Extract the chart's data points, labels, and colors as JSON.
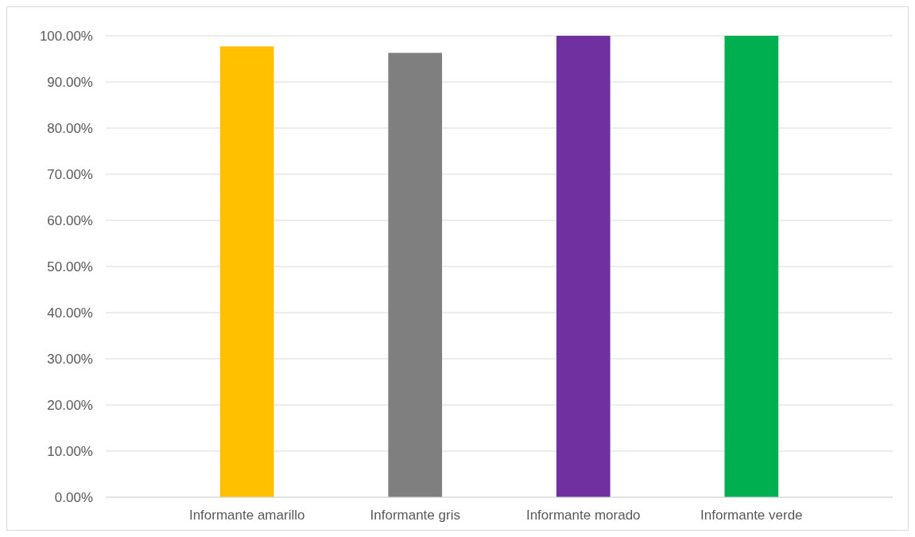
{
  "chart_data": {
    "type": "bar",
    "categories": [
      "Informante amarillo",
      "Informante gris",
      "Informante morado",
      "Informante verde"
    ],
    "values": [
      97.7,
      96.3,
      100,
      100
    ],
    "colors": [
      "#ffc000",
      "#7f7f7f",
      "#7030a0",
      "#00b050"
    ],
    "ylim": [
      0,
      100
    ],
    "yticks": [
      {
        "value": 0,
        "label": "0.00%"
      },
      {
        "value": 10,
        "label": "10.00%"
      },
      {
        "value": 20,
        "label": "20.00%"
      },
      {
        "value": 30,
        "label": "30.00%"
      },
      {
        "value": 40,
        "label": "40.00%"
      },
      {
        "value": 50,
        "label": "50.00%"
      },
      {
        "value": 60,
        "label": "60.00%"
      },
      {
        "value": 70,
        "label": "70.00%"
      },
      {
        "value": 80,
        "label": "80.00%"
      },
      {
        "value": 90,
        "label": "90.00%"
      },
      {
        "value": 100,
        "label": "100.00%"
      }
    ],
    "grid": "y"
  }
}
